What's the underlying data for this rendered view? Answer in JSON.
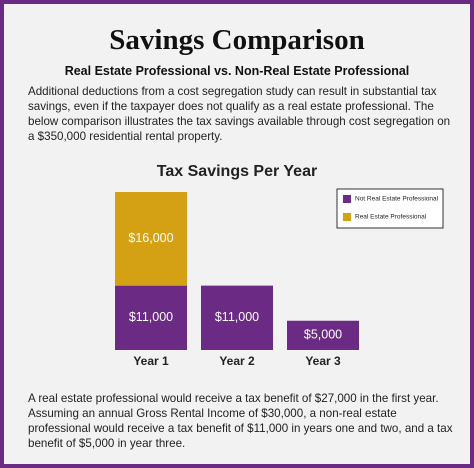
{
  "header": {
    "title": "Savings Comparison",
    "subtitle": "Real Estate Professional vs. Non-Real Estate Professional"
  },
  "intro": "Additional deductions from a cost segregation study can result in substantial tax savings, even if the taxpayer does not qualify as a real estate professional. The below comparison illustrates the tax savings available through cost segregation on a $350,000 residential rental property.",
  "chart_data": {
    "type": "stacked_bar",
    "title": "Tax Savings Per Year",
    "categories": [
      "Year 1",
      "Year 2",
      "Year 3"
    ],
    "series": [
      {
        "name": "Not Real Estate Professional",
        "color": "#6b2a84",
        "values": [
          11000,
          11000,
          5000
        ],
        "value_labels": [
          "$11,000",
          "$11,000",
          "$5,000"
        ]
      },
      {
        "name": "Real Estate Professional",
        "color": "#d4a014",
        "values": [
          16000,
          null,
          null
        ],
        "value_labels": [
          "$16,000",
          null,
          null
        ]
      }
    ],
    "legend": "upper right"
  },
  "footer": "A real estate professional would receive a tax benefit of $27,000 in the first year. Assuming an annual Gross Rental Income of $30,000, a non-real estate professional would receive a tax benefit of $11,000 in years one and two, and a tax benefit of $5,000 in year three."
}
